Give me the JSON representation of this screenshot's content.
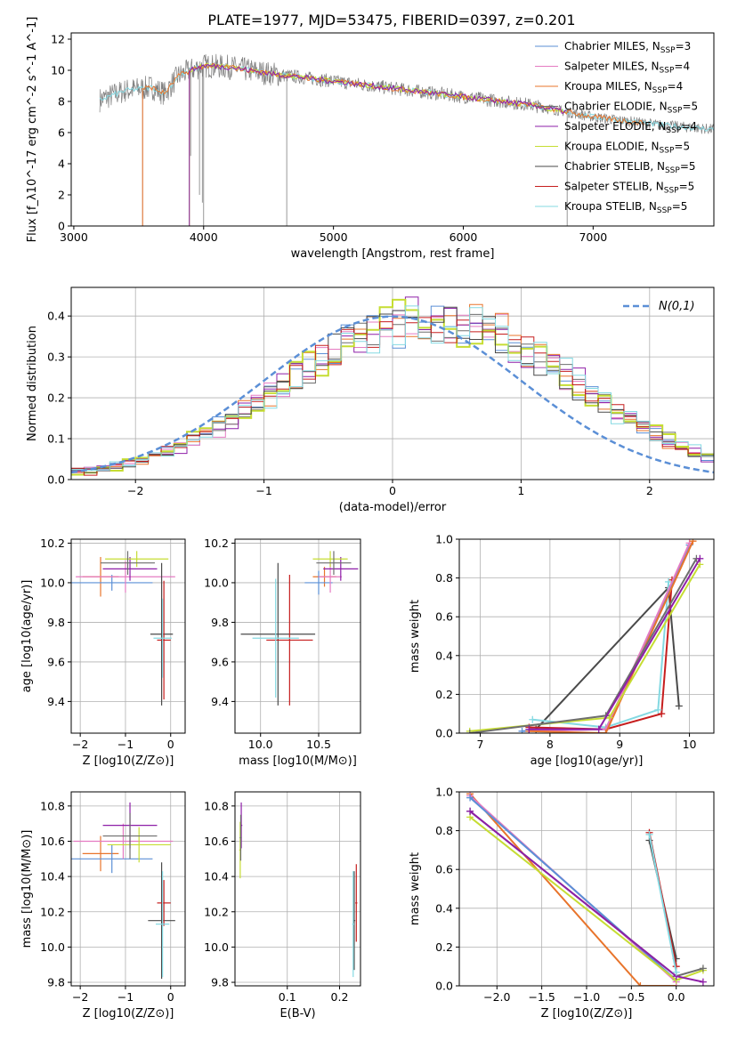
{
  "figure": {
    "title": "PLATE=1977, MJD=53475, FIBERID=0397, z=0.201"
  },
  "colors": {
    "Chabrier MILES": "#5b8fd6",
    "Salpeter MILES": "#e57bc2",
    "Kroupa MILES": "#e8742b",
    "Chabrier ELODIE": "#6e6e6e",
    "Salpeter ELODIE": "#8e1fa8",
    "Kroupa ELODIE": "#c6dd33",
    "Chabrier STELIB": "#4a4a4a",
    "Salpeter STELIB": "#c61e1e",
    "Kroupa STELIB": "#84d9e2",
    "gauss": "#5b8fd6"
  },
  "chart_data": [
    {
      "id": "spectrum",
      "type": "line",
      "title": "PLATE=1977, MJD=53475, FIBERID=0397, z=0.201",
      "xlabel": "wavelength [Angstrom, rest frame]",
      "ylabel": "Flux [f_λ10^-17 erg cm^-2 s^-1 A^-1]",
      "xlim": [
        2980,
        7930
      ],
      "ylim": [
        0,
        12.4
      ],
      "xticks": [
        "3000",
        "4000",
        "5000",
        "6000",
        "7000"
      ],
      "yticks": [
        "0",
        "2",
        "4",
        "6",
        "8",
        "10",
        "12"
      ],
      "grid": false,
      "legend": "top-right",
      "legend_entries": [
        "Chabrier MILES, N_SSP=3",
        "Salpeter MILES, N_SSP=4",
        "Kroupa MILES, N_SSP=4",
        "Chabrier ELODIE, N_SSP=5",
        "Salpeter ELODIE, N_SSP=4",
        "Kroupa ELODIE, N_SSP=5",
        "Chabrier STELIB, N_SSP=5",
        "Salpeter STELIB, N_SSP=5",
        "Kroupa STELIB, N_SSP=5"
      ],
      "legend_series": [
        "Chabrier MILES",
        "Salpeter MILES",
        "Kroupa MILES",
        "Chabrier ELODIE",
        "Salpeter ELODIE",
        "Kroupa ELODIE",
        "Chabrier STELIB",
        "Salpeter STELIB",
        "Kroupa STELIB"
      ],
      "data_range": [
        3200,
        7930
      ],
      "continuum": [
        [
          3200,
          8.1
        ],
        [
          3400,
          8.7
        ],
        [
          3600,
          8.9
        ],
        [
          3700,
          8.5
        ],
        [
          3800,
          9.6
        ],
        [
          3900,
          10.0
        ],
        [
          4000,
          10.3
        ],
        [
          4200,
          10.2
        ],
        [
          4500,
          9.8
        ],
        [
          5000,
          9.3
        ],
        [
          5500,
          8.8
        ],
        [
          6000,
          8.3
        ],
        [
          6500,
          7.8
        ],
        [
          7000,
          7.0
        ],
        [
          7500,
          6.5
        ],
        [
          7930,
          6.2
        ]
      ],
      "model_series": [
        {
          "name": "Kroupa STELIB",
          "range": [
            3200,
            7930
          ]
        },
        {
          "name": "Kroupa ELODIE",
          "range": [
            3890,
            6800
          ]
        },
        {
          "name": "Kroupa MILES",
          "range": [
            3530,
            7400
          ]
        },
        {
          "name": "Salpeter ELODIE",
          "range": [
            3890,
            6800
          ]
        }
      ],
      "dips": [
        [
          3530,
          0
        ],
        [
          3890,
          0
        ],
        [
          3900,
          4.5
        ],
        [
          3968,
          2.0
        ],
        [
          3990,
          1.5
        ],
        [
          4000,
          0
        ],
        [
          4640,
          0
        ],
        [
          6800,
          0
        ]
      ]
    },
    {
      "id": "residuals",
      "type": "histogram",
      "xlabel": "(data-model)/error",
      "ylabel": "Normed distribution",
      "xlim": [
        -2.5,
        2.5
      ],
      "ylim": [
        0,
        0.47
      ],
      "xticks": [
        "−2",
        "−1",
        "0",
        "1",
        "2"
      ],
      "yticks": [
        "0.0",
        "0.1",
        "0.2",
        "0.3",
        "0.4"
      ],
      "grid": true,
      "legend": "top-right",
      "legend_label": "N(0,1)",
      "bin_width": 0.1,
      "bin_start": -2.5,
      "base_density": [
        0.018,
        0.022,
        0.027,
        0.033,
        0.04,
        0.048,
        0.058,
        0.069,
        0.082,
        0.096,
        0.112,
        0.129,
        0.148,
        0.168,
        0.189,
        0.211,
        0.233,
        0.255,
        0.277,
        0.298,
        0.318,
        0.336,
        0.352,
        0.365,
        0.376,
        0.384,
        0.389,
        0.392,
        0.392,
        0.389,
        0.384,
        0.376,
        0.365,
        0.352,
        0.336,
        0.318,
        0.298,
        0.277,
        0.255,
        0.233,
        0.211,
        0.189,
        0.168,
        0.148,
        0.129,
        0.112,
        0.096,
        0.082,
        0.069,
        0.058
      ],
      "series_names": [
        "Chabrier MILES",
        "Salpeter MILES",
        "Kroupa MILES",
        "Chabrier ELODIE",
        "Salpeter ELODIE",
        "Kroupa ELODIE",
        "Chabrier STELIB",
        "Salpeter STELIB",
        "Kroupa STELIB"
      ]
    },
    {
      "id": "age-vs-Z",
      "type": "errorbar",
      "xlabel": "Z [log10(Z/Z⊙)]",
      "ylabel": "age [log10(age/yr)]",
      "xlim": [
        -2.2,
        0.32
      ],
      "ylim": [
        9.24,
        10.22
      ],
      "xticks": [
        "−2",
        "−1",
        "0"
      ],
      "yticks": [
        "9.4",
        "9.6",
        "9.8",
        "10.0",
        "10.2"
      ],
      "grid": true,
      "points": [
        {
          "series": "Kroupa MILES",
          "x": -1.55,
          "xerr": 0.4,
          "y": 10.03,
          "yerr": 0.1
        },
        {
          "series": "Chabrier MILES",
          "x": -1.3,
          "xerr": 0.9,
          "y": 10.0,
          "yerr": 0.04
        },
        {
          "series": "Salpeter MILES",
          "x": -1.0,
          "xerr": 1.1,
          "y": 10.03,
          "yerr": 0.08
        },
        {
          "series": "Salpeter ELODIE",
          "x": -0.9,
          "xerr": 0.6,
          "y": 10.07,
          "yerr": 0.06
        },
        {
          "series": "Kroupa ELODIE",
          "x": -0.75,
          "xerr": 0.7,
          "y": 10.12,
          "yerr": 0.04
        },
        {
          "series": "Chabrier ELODIE",
          "x": -0.95,
          "xerr": 0.6,
          "y": 10.1,
          "yerr": 0.06
        },
        {
          "series": "Chabrier STELIB",
          "x": -0.2,
          "xerr": 0.25,
          "y": 9.74,
          "yerr": 0.36
        },
        {
          "series": "Salpeter STELIB",
          "x": -0.15,
          "xerr": 0.15,
          "y": 9.71,
          "yerr": 0.3
        },
        {
          "series": "Kroupa STELIB",
          "x": -0.18,
          "xerr": 0.2,
          "y": 9.72,
          "yerr": 0.2
        }
      ]
    },
    {
      "id": "age-vs-mass",
      "type": "errorbar",
      "xlabel": "mass [log10(M/M⊙)]",
      "ylabel": "",
      "xlim": [
        9.78,
        10.86
      ],
      "ylim": [
        9.24,
        10.22
      ],
      "xticks": [
        "10.0",
        "10.5"
      ],
      "yticks": [
        "9.4",
        "9.6",
        "9.8",
        "10.0",
        "10.2"
      ],
      "grid": true,
      "points": [
        {
          "series": "Chabrier STELIB",
          "x": 10.15,
          "xerr": 0.32,
          "y": 9.74,
          "yerr": 0.36
        },
        {
          "series": "Salpeter STELIB",
          "x": 10.25,
          "xerr": 0.2,
          "y": 9.71,
          "yerr": 0.33
        },
        {
          "series": "Kroupa STELIB",
          "x": 10.13,
          "xerr": 0.2,
          "y": 9.72,
          "yerr": 0.3
        },
        {
          "series": "Kroupa MILES",
          "x": 10.55,
          "xerr": 0.1,
          "y": 10.03,
          "yerr": 0.05
        },
        {
          "series": "Chabrier MILES",
          "x": 10.5,
          "xerr": 0.12,
          "y": 10.0,
          "yerr": 0.06
        },
        {
          "series": "Salpeter MILES",
          "x": 10.6,
          "xerr": 0.1,
          "y": 10.03,
          "yerr": 0.08
        },
        {
          "series": "Salpeter ELODIE",
          "x": 10.69,
          "xerr": 0.15,
          "y": 10.07,
          "yerr": 0.06
        },
        {
          "series": "Kroupa ELODIE",
          "x": 10.6,
          "xerr": 0.15,
          "y": 10.12,
          "yerr": 0.04
        },
        {
          "series": "Chabrier ELODIE",
          "x": 10.63,
          "xerr": 0.15,
          "y": 10.1,
          "yerr": 0.06
        }
      ]
    },
    {
      "id": "weight-vs-age",
      "type": "line",
      "xlabel": "age [log10(age/yr)]",
      "ylabel": "mass weight",
      "xlim": [
        6.7,
        10.35
      ],
      "ylim": [
        0,
        1.0
      ],
      "xticks": [
        "7",
        "8",
        "9",
        "10"
      ],
      "yticks": [
        "0.0",
        "0.2",
        "0.4",
        "0.6",
        "0.8",
        "1.0"
      ],
      "grid": true,
      "series": [
        {
          "name": "Chabrier STELIB",
          "x": [
            7.8,
            9.7,
            9.85
          ],
          "y": [
            0.02,
            0.75,
            0.14
          ]
        },
        {
          "name": "Salpeter STELIB",
          "x": [
            7.7,
            8.8,
            9.6,
            9.75
          ],
          "y": [
            0.03,
            0.02,
            0.1,
            0.79
          ]
        },
        {
          "name": "Kroupa STELIB",
          "x": [
            7.75,
            8.8,
            9.55,
            9.7
          ],
          "y": [
            0.07,
            0.03,
            0.12,
            0.78
          ]
        },
        {
          "name": "Chabrier MILES",
          "x": [
            7.6,
            8.8,
            10.0
          ],
          "y": [
            0.01,
            0.02,
            0.97
          ]
        },
        {
          "name": "Salpeter MILES",
          "x": [
            7.7,
            8.8,
            10.0
          ],
          "y": [
            0.01,
            0.02,
            0.98
          ]
        },
        {
          "name": "Kroupa MILES",
          "x": [
            7.7,
            8.8,
            10.05
          ],
          "y": [
            0.01,
            0.0,
            0.99
          ]
        },
        {
          "name": "Kroupa ELODIE",
          "x": [
            6.85,
            8.85,
            10.15
          ],
          "y": [
            0.01,
            0.08,
            0.87
          ]
        },
        {
          "name": "Chabrier ELODIE",
          "x": [
            6.85,
            8.8,
            10.1
          ],
          "y": [
            0.0,
            0.09,
            0.9
          ]
        },
        {
          "name": "Salpeter ELODIE",
          "x": [
            7.7,
            8.7,
            10.15
          ],
          "y": [
            0.02,
            0.02,
            0.9
          ]
        }
      ]
    },
    {
      "id": "mass-vs-Z",
      "type": "errorbar",
      "xlabel": "Z [log10(Z/Z⊙)]",
      "ylabel": "mass [log10(M/M⊙)]",
      "xlim": [
        -2.2,
        0.32
      ],
      "ylim": [
        9.78,
        10.88
      ],
      "xticks": [
        "−2",
        "−1",
        "0"
      ],
      "yticks": [
        "9.8",
        "10.0",
        "10.2",
        "10.4",
        "10.6",
        "10.8"
      ],
      "grid": true,
      "points": [
        {
          "series": "Kroupa MILES",
          "x": -1.55,
          "xerr": 0.4,
          "y": 10.53,
          "yerr": 0.1
        },
        {
          "series": "Chabrier MILES",
          "x": -1.3,
          "xerr": 0.9,
          "y": 10.5,
          "yerr": 0.08
        },
        {
          "series": "Salpeter MILES",
          "x": -1.05,
          "xerr": 1.1,
          "y": 10.6,
          "yerr": 0.1
        },
        {
          "series": "Salpeter ELODIE",
          "x": -0.9,
          "xerr": 0.6,
          "y": 10.69,
          "yerr": 0.13
        },
        {
          "series": "Kroupa ELODIE",
          "x": -0.7,
          "xerr": 0.7,
          "y": 10.58,
          "yerr": 0.1
        },
        {
          "series": "Chabrier ELODIE",
          "x": -0.9,
          "xerr": 0.6,
          "y": 10.63,
          "yerr": 0.13
        },
        {
          "series": "Chabrier STELIB",
          "x": -0.2,
          "xerr": 0.3,
          "y": 10.15,
          "yerr": 0.33
        },
        {
          "series": "Salpeter STELIB",
          "x": -0.15,
          "xerr": 0.15,
          "y": 10.25,
          "yerr": 0.13
        },
        {
          "series": "Kroupa STELIB",
          "x": -0.18,
          "xerr": 0.15,
          "y": 10.13,
          "yerr": 0.3
        }
      ]
    },
    {
      "id": "mass-vs-ebv",
      "type": "errorbar",
      "xlabel": "E(B-V)",
      "ylabel": "",
      "xlim": [
        0.0,
        0.24
      ],
      "ylim": [
        9.78,
        10.88
      ],
      "xticks": [
        "0.1",
        "0.2",
        "0.1",
        "0.2"
      ],
      "xtick_values": [
        0.1,
        0.2
      ],
      "yticks": [
        "9.8",
        "10.0",
        "10.2",
        "10.4",
        "10.6",
        "10.8"
      ],
      "grid": true,
      "points": [
        {
          "series": "Salpeter ELODIE",
          "x": 0.012,
          "xerr": 0.002,
          "y": 10.69,
          "yerr": 0.13
        },
        {
          "series": "Kroupa ELODIE",
          "x": 0.01,
          "xerr": 0.002,
          "y": 10.55,
          "yerr": 0.16
        },
        {
          "series": "Chabrier ELODIE",
          "x": 0.011,
          "xerr": 0.002,
          "y": 10.62,
          "yerr": 0.13
        },
        {
          "series": "Salpeter STELIB",
          "x": 0.232,
          "xerr": 0.002,
          "y": 10.25,
          "yerr": 0.22
        },
        {
          "series": "Chabrier STELIB",
          "x": 0.228,
          "xerr": 0.002,
          "y": 10.15,
          "yerr": 0.28
        },
        {
          "series": "Kroupa STELIB",
          "x": 0.226,
          "xerr": 0.002,
          "y": 10.13,
          "yerr": 0.3
        }
      ]
    },
    {
      "id": "weight-vs-Z",
      "type": "line",
      "xlabel": "Z [log10(Z/Z⊙)]",
      "ylabel": "mass weight",
      "xlim": [
        -2.42,
        0.42
      ],
      "ylim": [
        0,
        1.0
      ],
      "xticks": [
        "−2.0",
        "−1.5",
        "−1.0",
        "−0.5",
        "0.0"
      ],
      "yticks": [
        "0.0",
        "0.2",
        "0.4",
        "0.6",
        "0.8",
        "1.0"
      ],
      "grid": true,
      "series": [
        {
          "name": "Kroupa MILES",
          "x": [
            -2.3,
            -0.4,
            0.0
          ],
          "y": [
            0.99,
            0.0,
            0.0
          ]
        },
        {
          "name": "Salpeter MILES",
          "x": [
            -2.3,
            0.0
          ],
          "y": [
            0.98,
            0.02
          ]
        },
        {
          "name": "Chabrier MILES",
          "x": [
            -2.3,
            0.0
          ],
          "y": [
            0.97,
            0.03
          ]
        },
        {
          "name": "Kroupa ELODIE",
          "x": [
            -2.3,
            0.0,
            0.3
          ],
          "y": [
            0.87,
            0.03,
            0.08
          ]
        },
        {
          "name": "Chabrier ELODIE",
          "x": [
            -2.3,
            0.0,
            0.3
          ],
          "y": [
            0.9,
            0.05,
            0.09
          ]
        },
        {
          "name": "Salpeter ELODIE",
          "x": [
            -2.3,
            0.0,
            0.3
          ],
          "y": [
            0.9,
            0.05,
            0.02
          ]
        },
        {
          "name": "Chabrier STELIB",
          "x": [
            -0.3,
            0.0
          ],
          "y": [
            0.75,
            0.14
          ]
        },
        {
          "name": "Salpeter STELIB",
          "x": [
            -0.3,
            0.0
          ],
          "y": [
            0.79,
            0.1
          ]
        },
        {
          "name": "Kroupa STELIB",
          "x": [
            -0.3,
            0.0
          ],
          "y": [
            0.78,
            0.07
          ]
        }
      ]
    }
  ]
}
